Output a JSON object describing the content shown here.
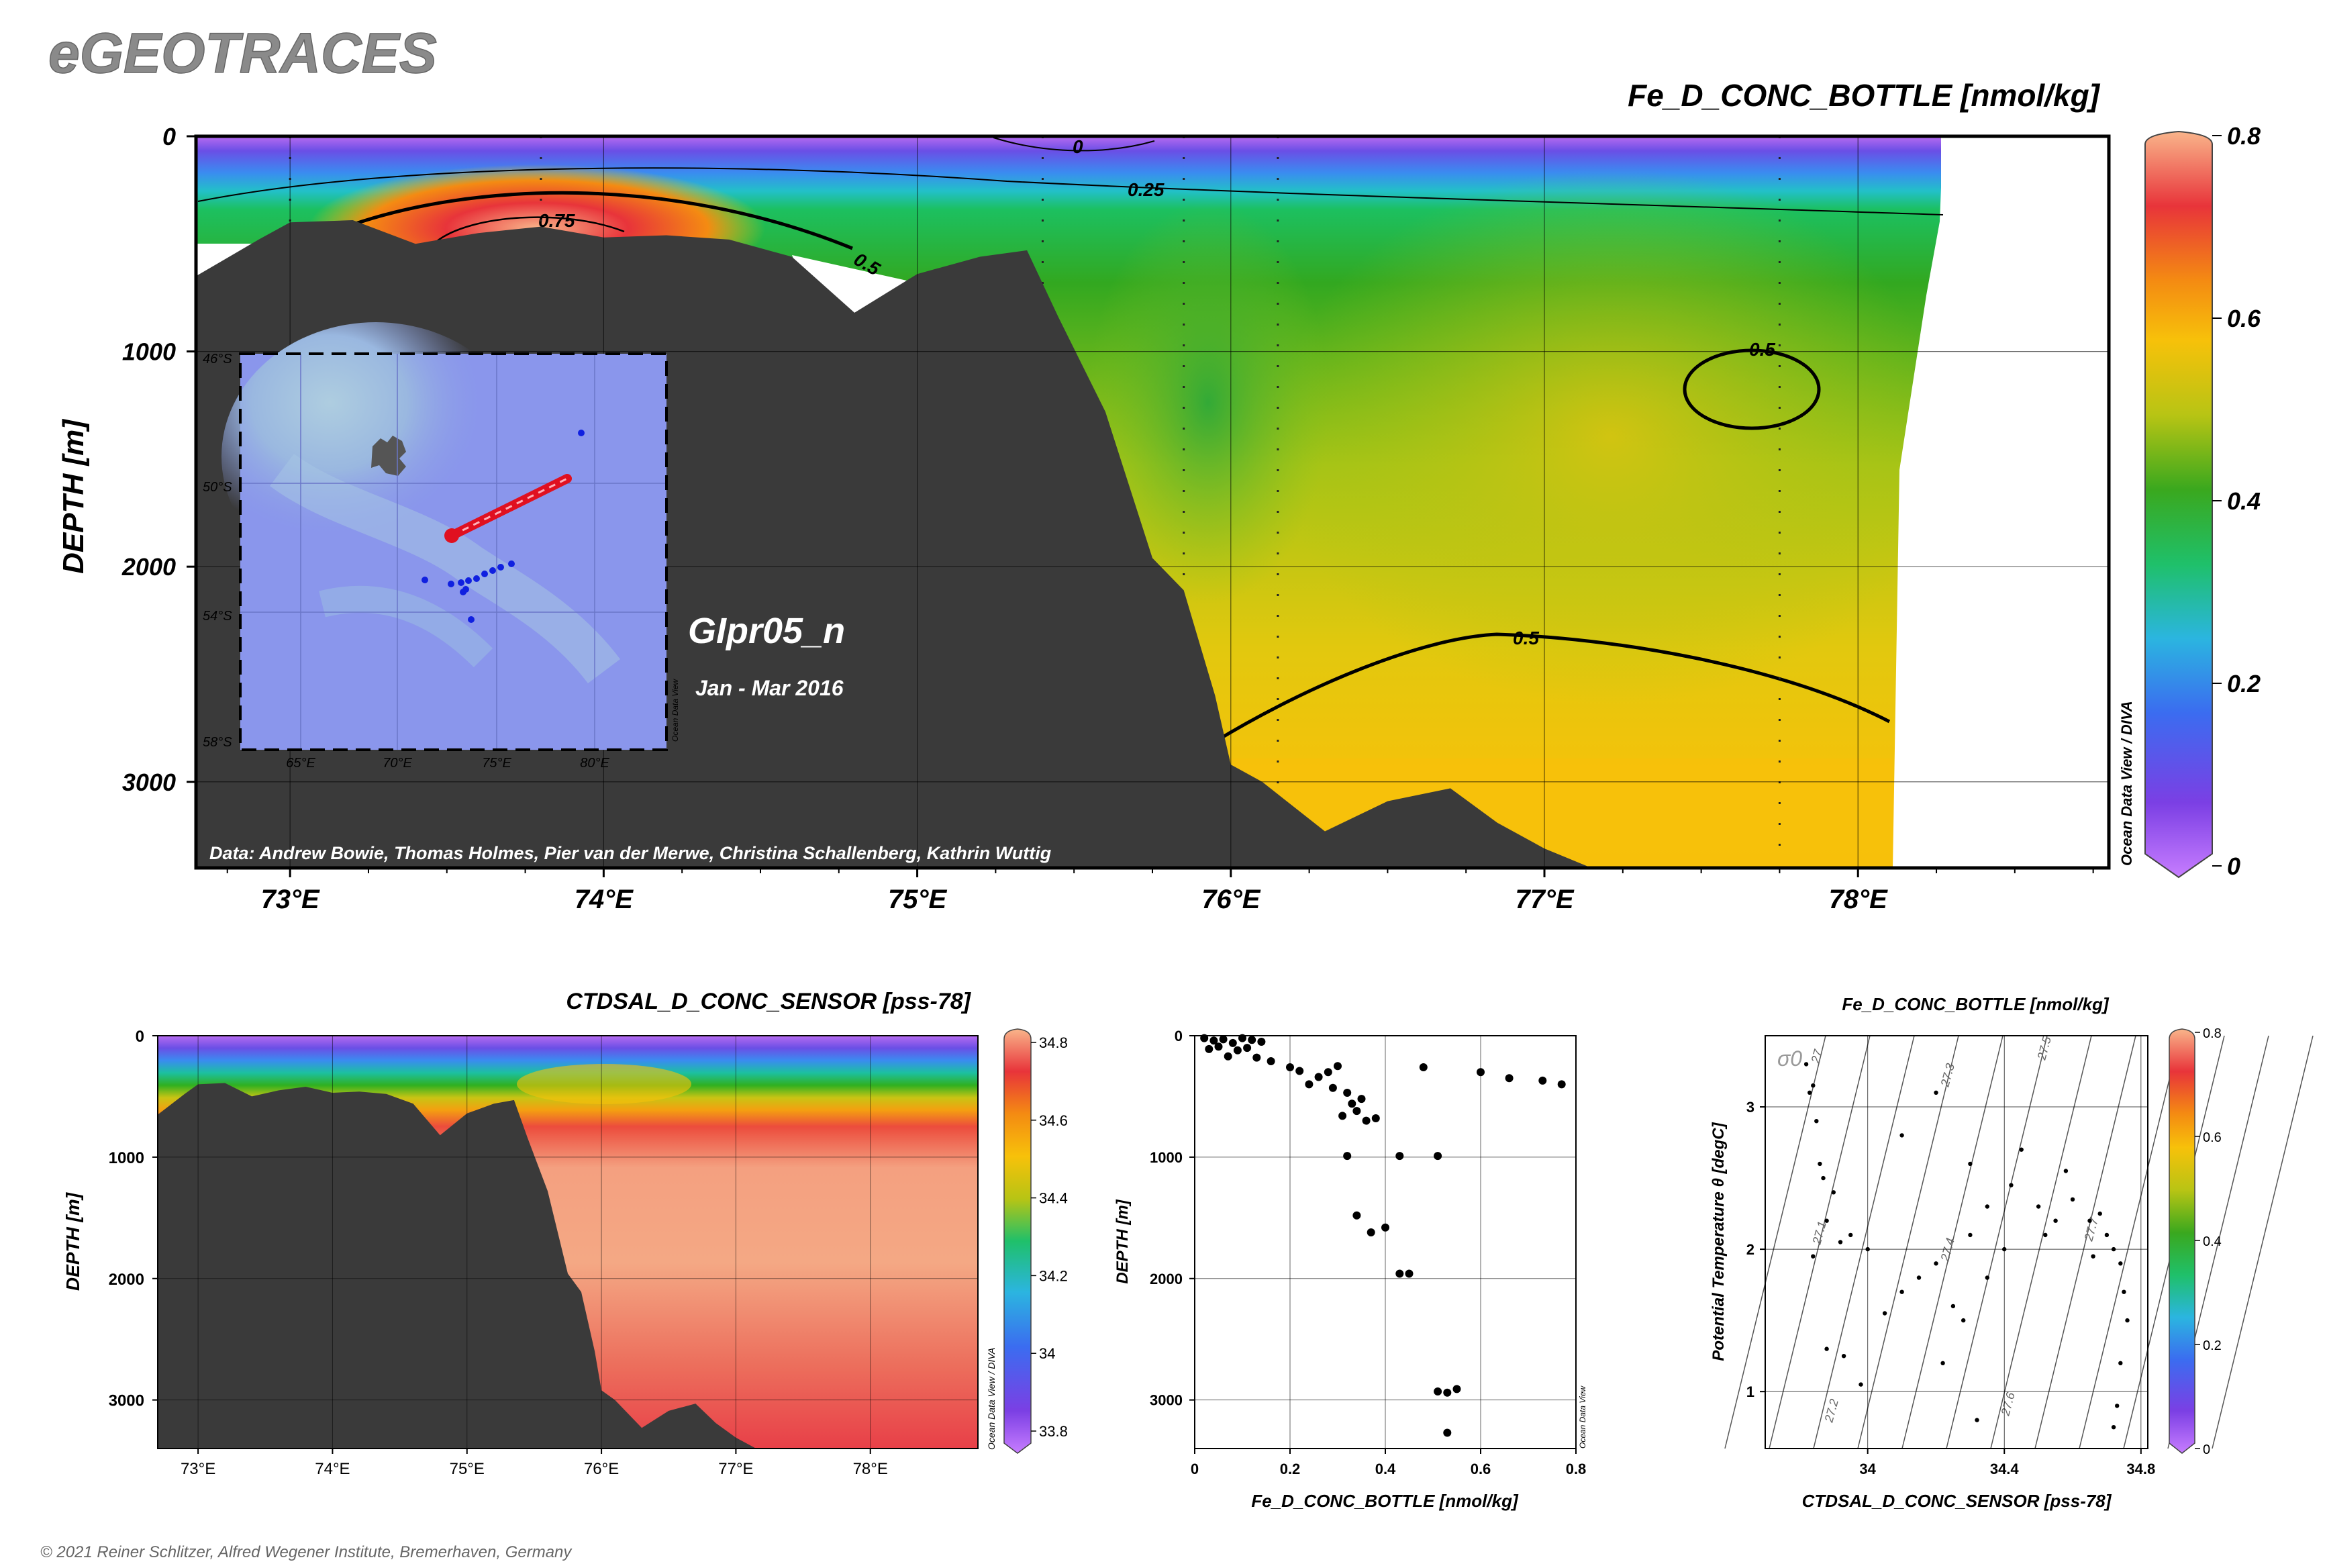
{
  "header": {
    "brand": "eGEOTRACES",
    "copyright": "© 2021 Reiner Schlitzer, Alfred Wegener Institute, Bremerhaven, Germany"
  },
  "colors": {
    "bathymetry": "#3a3a3a",
    "colormap": [
      "#c77dff",
      "#7b3fe4",
      "#3b6cf0",
      "#2bb5e0",
      "#1fc06a",
      "#27a21e",
      "#b8c414",
      "#f7c10a",
      "#f48b12",
      "#e8343a",
      "#e84a4a",
      "#f9a77c"
    ]
  },
  "main_section": {
    "title": "Fe_D_CONC_BOTTLE [nmol/kg]",
    "ylabel": "DEPTH [m]",
    "cruise": "GIpr05_n",
    "period": "Jan - Mar 2016",
    "credits": "Data: Andrew Bowie, Thomas Holmes, Pier van der Merwe, Christina Schallenberg, Kathrin Wuttig",
    "odv_tag": "Ocean Data View / DIVA",
    "colorbar": {
      "min": 0,
      "max": 0.8,
      "ticks": [
        "0",
        "0.2",
        "0.4",
        "0.6",
        "0.8"
      ]
    },
    "contour_labels": [
      "0",
      "0.25",
      "0.75",
      "0.5",
      "0.5",
      "0.5"
    ]
  },
  "inset_map": {
    "lat_labels": [
      "46°S",
      "50°S",
      "54°S",
      "58°S"
    ],
    "lon_labels": [
      "65°E",
      "70°E",
      "75°E",
      "80°E"
    ],
    "odv_tag": "Ocean Data View"
  },
  "salinity_section": {
    "title": "CTDSAL_D_CONC_SENSOR [pss-78]",
    "ylabel": "DEPTH [m]",
    "odv_tag": "Ocean Data View / DIVA",
    "colorbar": {
      "ticks": [
        "33.8",
        "34",
        "34.2",
        "34.4",
        "34.6",
        "34.8"
      ]
    }
  },
  "profile_plot": {
    "xlabel": "Fe_D_CONC_BOTTLE [nmol/kg]",
    "ylabel": "DEPTH [m]",
    "odv_tag": "Ocean Data View"
  },
  "ts_plot": {
    "title": "Fe_D_CONC_BOTTLE [nmol/kg]",
    "xlabel": "CTDSAL_D_CONC_SENSOR [pss-78]",
    "ylabel": "Potential Temperature θ [degC]",
    "sigma_label": "σ0",
    "isopycnal_labels": [
      "27",
      "27.1",
      "27.2",
      "27.3",
      "27.4",
      "27.5",
      "27.6",
      "27.7"
    ],
    "colorbar": {
      "ticks": [
        "0",
        "0.2",
        "0.4",
        "0.6",
        "0.8"
      ]
    }
  },
  "chart_data": [
    {
      "type": "heatmap",
      "variable": "Fe_D_CONC_BOTTLE [nmol/kg]",
      "title": "Fe_D_CONC_BOTTLE [nmol/kg]",
      "xlabel": "",
      "ylabel": "DEPTH [m]",
      "x_ticks": [
        "73°E",
        "74°E",
        "75°E",
        "76°E",
        "77°E",
        "78°E"
      ],
      "y_ticks": [
        "0",
        "1000",
        "2000",
        "3000"
      ],
      "xlim": [
        72.7,
        78.8
      ],
      "ylim": [
        3400,
        0
      ],
      "zlim": [
        0,
        0.8
      ],
      "contours": [
        {
          "level": 0,
          "label": "0"
        },
        {
          "level": 0.25,
          "label": "0.25"
        },
        {
          "level": 0.5,
          "label": "0.5"
        },
        {
          "level": 0.75,
          "label": "0.75"
        }
      ],
      "station_lon": [
        73.0,
        73.8,
        75.4,
        75.85,
        76.15,
        77.75
      ],
      "seafloor": [
        [
          72.7,
          650
        ],
        [
          72.9,
          480
        ],
        [
          73.0,
          400
        ],
        [
          73.2,
          390
        ],
        [
          73.4,
          500
        ],
        [
          73.6,
          450
        ],
        [
          73.8,
          420
        ],
        [
          74.0,
          470
        ],
        [
          74.2,
          460
        ],
        [
          74.4,
          480
        ],
        [
          74.6,
          560
        ],
        [
          74.8,
          820
        ],
        [
          75.0,
          640
        ],
        [
          75.2,
          560
        ],
        [
          75.35,
          530
        ],
        [
          75.45,
          840
        ],
        [
          75.6,
          1280
        ],
        [
          75.75,
          1960
        ],
        [
          75.85,
          2110
        ],
        [
          75.95,
          2600
        ],
        [
          76.0,
          2920
        ],
        [
          76.1,
          3000
        ],
        [
          76.3,
          3230
        ],
        [
          76.5,
          3090
        ],
        [
          76.7,
          3030
        ],
        [
          76.85,
          3190
        ],
        [
          77.0,
          3310
        ],
        [
          77.15,
          3400
        ]
      ]
    },
    {
      "type": "heatmap",
      "variable": "CTDSAL_D_CONC_SENSOR [pss-78]",
      "title": "CTDSAL_D_CONC_SENSOR [pss-78]",
      "xlabel": "",
      "ylabel": "DEPTH [m]",
      "x_ticks": [
        "73°E",
        "74°E",
        "75°E",
        "76°E",
        "77°E",
        "78°E"
      ],
      "y_ticks": [
        "0",
        "1000",
        "2000",
        "3000"
      ],
      "xlim": [
        72.7,
        78.8
      ],
      "ylim": [
        3400,
        0
      ],
      "zlim": [
        33.8,
        34.8
      ]
    },
    {
      "type": "scatter",
      "title": "",
      "xlabel": "Fe_D_CONC_BOTTLE [nmol/kg]",
      "ylabel": "DEPTH [m]",
      "x_ticks": [
        "0",
        "0.2",
        "0.4",
        "0.6",
        "0.8"
      ],
      "y_ticks": [
        "0",
        "1000",
        "2000",
        "3000"
      ],
      "xlim": [
        0,
        0.8
      ],
      "ylim": [
        3400,
        0
      ],
      "points": [
        [
          0.02,
          20
        ],
        [
          0.04,
          40
        ],
        [
          0.06,
          30
        ],
        [
          0.08,
          60
        ],
        [
          0.1,
          20
        ],
        [
          0.12,
          35
        ],
        [
          0.05,
          90
        ],
        [
          0.09,
          120
        ],
        [
          0.14,
          50
        ],
        [
          0.03,
          110
        ],
        [
          0.07,
          170
        ],
        [
          0.11,
          100
        ],
        [
          0.13,
          180
        ],
        [
          0.16,
          210
        ],
        [
          0.2,
          260
        ],
        [
          0.22,
          290
        ],
        [
          0.26,
          340
        ],
        [
          0.28,
          300
        ],
        [
          0.3,
          250
        ],
        [
          0.24,
          400
        ],
        [
          0.29,
          430
        ],
        [
          0.32,
          470
        ],
        [
          0.35,
          520
        ],
        [
          0.33,
          560
        ],
        [
          0.34,
          620
        ],
        [
          0.36,
          700
        ],
        [
          0.31,
          660
        ],
        [
          0.38,
          680
        ],
        [
          0.48,
          260
        ],
        [
          0.6,
          300
        ],
        [
          0.66,
          350
        ],
        [
          0.73,
          370
        ],
        [
          0.77,
          400
        ],
        [
          0.43,
          990
        ],
        [
          0.51,
          990
        ],
        [
          0.32,
          990
        ],
        [
          0.34,
          1480
        ],
        [
          0.37,
          1620
        ],
        [
          0.4,
          1580
        ],
        [
          0.43,
          1960
        ],
        [
          0.45,
          1960
        ],
        [
          0.51,
          2930
        ],
        [
          0.53,
          2940
        ],
        [
          0.55,
          2910
        ],
        [
          0.53,
          3270
        ]
      ]
    },
    {
      "type": "scatter",
      "title": "Fe_D_CONC_BOTTLE [nmol/kg]",
      "xlabel": "CTDSAL_D_CONC_SENSOR [pss-78]",
      "ylabel": "Potential Temperature θ [degC]",
      "x_ticks": [
        "34",
        "34.4",
        "34.8"
      ],
      "y_ticks": [
        "1",
        "2",
        "3"
      ],
      "xlim": [
        33.7,
        34.82
      ],
      "ylim": [
        0.6,
        3.5
      ],
      "points": [
        [
          33.82,
          3.3
        ],
        [
          33.84,
          3.15
        ],
        [
          33.83,
          3.1
        ],
        [
          33.85,
          2.9
        ],
        [
          33.86,
          2.6
        ],
        [
          33.87,
          2.5
        ],
        [
          33.9,
          2.4
        ],
        [
          33.88,
          2.2
        ],
        [
          33.92,
          2.05
        ],
        [
          33.95,
          2.1
        ],
        [
          33.84,
          1.95
        ],
        [
          33.88,
          1.3
        ],
        [
          33.93,
          1.25
        ],
        [
          33.98,
          1.05
        ],
        [
          34.05,
          1.55
        ],
        [
          34.1,
          1.7
        ],
        [
          34.15,
          1.8
        ],
        [
          34.2,
          1.9
        ],
        [
          34.25,
          1.6
        ],
        [
          34.3,
          2.1
        ],
        [
          34.35,
          2.3
        ],
        [
          34.42,
          2.45
        ],
        [
          34.5,
          2.3
        ],
        [
          34.55,
          2.2
        ],
        [
          34.6,
          2.35
        ],
        [
          34.65,
          2.2
        ],
        [
          34.7,
          2.1
        ],
        [
          34.72,
          2.0
        ],
        [
          34.74,
          1.9
        ],
        [
          34.75,
          1.7
        ],
        [
          34.76,
          1.5
        ],
        [
          34.74,
          1.2
        ],
        [
          34.73,
          0.9
        ],
        [
          34.72,
          0.75
        ],
        [
          34.2,
          3.1
        ],
        [
          34.3,
          2.6
        ],
        [
          34.45,
          2.7
        ],
        [
          34.52,
          2.1
        ],
        [
          34.58,
          2.55
        ],
        [
          34.68,
          2.25
        ],
        [
          34.66,
          1.95
        ],
        [
          34.4,
          2.0
        ],
        [
          34.35,
          1.8
        ],
        [
          34.28,
          1.5
        ],
        [
          34.22,
          1.2
        ],
        [
          34.32,
          0.8
        ],
        [
          34.1,
          2.8
        ],
        [
          34.0,
          2.0
        ]
      ]
    }
  ]
}
